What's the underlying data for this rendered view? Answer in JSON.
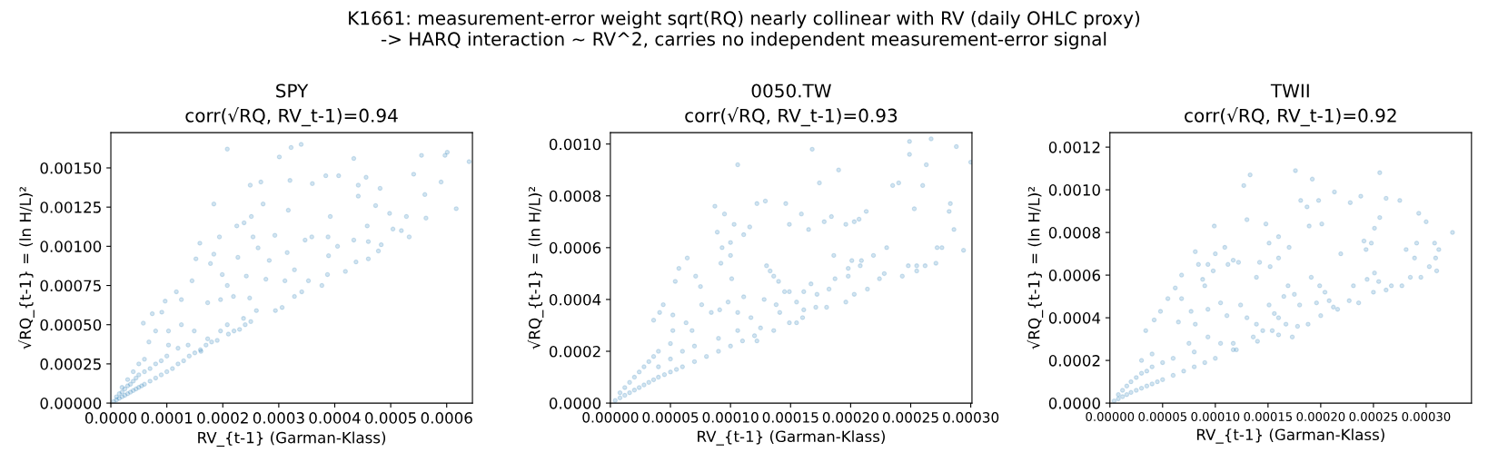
{
  "chart_data": [
    {
      "type": "other",
      "title": "K1661: measurement-error weight sqrt(RQ) nearly collinear with RV (daily OHLC proxy)",
      "subtitle": "-> HARQ interaction ~ RV^2, carries no independent measurement-error signal"
    },
    {
      "type": "scatter",
      "title": "SPY",
      "subtitle": "corr(√RQ, RV_t-1)=0.94",
      "xlabel": "RV_{t-1} (Garman-Klass)",
      "ylabel": "√RQ_{t-1} = (ln H/L)²",
      "marker": "circle",
      "color": "#1f77b4",
      "xlim": [
        0,
        0.000646
      ],
      "ylim": [
        0,
        0.001725
      ],
      "xticks": [
        {
          "value": 0,
          "label": "0.0000"
        },
        {
          "value": 0.0001,
          "label": "0.0001"
        },
        {
          "value": 0.0002,
          "label": "0.0002"
        },
        {
          "value": 0.0003,
          "label": "0.0003"
        },
        {
          "value": 0.0004,
          "label": "0.0004"
        },
        {
          "value": 0.0005,
          "label": "0.0005"
        },
        {
          "value": 0.0006,
          "label": "0.0006"
        }
      ],
      "yticks": [
        {
          "value": 0,
          "label": "0.00000"
        },
        {
          "value": 0.00025,
          "label": "0.00025"
        },
        {
          "value": 0.0005,
          "label": "0.00050"
        },
        {
          "value": 0.00075,
          "label": "0.00075"
        },
        {
          "value": 0.001,
          "label": "0.00100"
        },
        {
          "value": 0.00125,
          "label": "0.00125"
        },
        {
          "value": 0.0015,
          "label": "0.00150"
        }
      ],
      "x": [
        0.000208,
        0.000322,
        0.00034,
        0.000301,
        0.000434,
        0.000555,
        0.000601,
        0.000597,
        0.00064,
        0.000541,
        0.00059,
        0.000561,
        0.000563,
        0.000617,
        0.000528,
        0.000533,
        0.000519,
        0.000504,
        0.000498,
        0.000473,
        0.000481,
        0.000456,
        0.000442,
        0.000442,
        0.000458,
        0.000434,
        0.00046,
        0.000483,
        0.000478,
        0.00046,
        0.000438,
        0.000419,
        0.000405,
        0.000407,
        0.000384,
        0.000392,
        0.00036,
        0.000359,
        0.000388,
        0.000389,
        0.000387,
        0.000377,
        0.000341,
        0.000353,
        0.00032,
        0.000317,
        0.000347,
        0.000315,
        0.000328,
        0.000311,
        0.000328,
        0.000306,
        0.000294,
        0.000293,
        0.000268,
        0.000249,
        0.000272,
        0.000251,
        0.000238,
        0.000225,
        0.000254,
        0.000263,
        0.000283,
        0.000227,
        0.000184,
        0.000194,
        0.000159,
        0.000152,
        0.000184,
        0.000199,
        0.000145,
        0.000178,
        0.000208,
        0.000242,
        0.000277,
        0.000117,
        9.7e-05,
        5.8e-05,
        7.4e-05,
        9.1e-05,
        0.000126,
        0.000173,
        0.000196,
        0.000219,
        0.000248,
        0.00026,
        0.000237,
        0.000208,
        0.000196,
        0.000173,
        0.000149,
        0.000126,
        0.000103,
        8e-05,
        6.8e-05,
        0.000103,
        0.000138,
        0.000161,
        0.00022,
        0.00024,
        5e-06,
        1e-05,
        1e-05,
        1.5e-05,
        1.5e-05,
        2e-05,
        2e-05,
        2e-05,
        2.5e-05,
        2.5e-05,
        3e-05,
        3e-05,
        3e-05,
        3.5e-05,
        3.5e-05,
        4e-05,
        4e-05,
        4e-05,
        4.5e-05,
        4.5e-05,
        5e-05,
        5e-05,
        5e-05,
        5.5e-05,
        6e-05,
        6e-05,
        6e-05,
        7e-05,
        7e-05,
        8e-05,
        8e-05,
        9e-05,
        9e-05,
        0.0001,
        0.0001,
        0.00011,
        0.00012,
        0.00012,
        0.00013,
        0.00014,
        0.00015,
        0.00016,
        0.00017,
        0.00018,
        0.00019,
        0.00021,
        0.00023,
        0.00025
      ],
      "values": [
        0.00162,
        0.00163,
        0.00165,
        0.00157,
        0.00156,
        0.00158,
        0.0016,
        0.00158,
        0.00154,
        0.00146,
        0.00141,
        0.00133,
        0.00118,
        0.00124,
        0.00119,
        0.00106,
        0.0011,
        0.00111,
        0.00121,
        0.00126,
        0.00137,
        0.00144,
        0.00139,
        0.00132,
        0.00113,
        0.00104,
        0.00103,
        0.00101,
        0.00097,
        0.00092,
        0.0009,
        0.00084,
        0.001,
        0.00145,
        0.00145,
        0.00119,
        0.0014,
        0.00106,
        0.00106,
        0.00094,
        0.00082,
        0.00075,
        0.00071,
        0.00078,
        0.00142,
        0.00123,
        0.00104,
        0.00096,
        0.00085,
        0.00078,
        0.00068,
        0.00061,
        0.00059,
        0.00107,
        0.00141,
        0.00139,
        0.00127,
        0.00119,
        0.00115,
        0.00113,
        0.00106,
        0.00099,
        0.00091,
        0.00093,
        0.00127,
        0.00106,
        0.00102,
        0.00092,
        0.00095,
        0.00082,
        0.00078,
        0.00089,
        0.00075,
        0.00081,
        0.00079,
        0.00071,
        0.00065,
        0.00051,
        0.00057,
        0.00058,
        0.00066,
        0.00064,
        0.00066,
        0.00068,
        0.00067,
        0.00059,
        0.00054,
        0.0005,
        0.00046,
        0.00041,
        0.00046,
        0.0005,
        0.00046,
        0.00046,
        0.00039,
        0.00037,
        0.00037,
        0.00033,
        0.00046,
        0.0005,
        1e-05,
        2e-05,
        4e-05,
        3e-05,
        6e-05,
        4e-05,
        7e-05,
        0.0001,
        5e-05,
        9e-05,
        6e-05,
        0.00011,
        0.00015,
        7e-05,
        0.00012,
        8e-05,
        0.00014,
        0.0002,
        9e-05,
        0.00016,
        0.0001,
        0.00018,
        0.00025,
        0.00011,
        0.00012,
        0.0002,
        0.00028,
        0.00014,
        0.00022,
        0.00016,
        0.00025,
        0.00018,
        0.00027,
        0.0002,
        0.0003,
        0.00022,
        0.00025,
        0.00035,
        0.00027,
        0.0003,
        0.00032,
        0.00034,
        0.00037,
        0.00039,
        0.0004,
        0.00044,
        0.00047,
        0.00052
      ]
    },
    {
      "type": "scatter",
      "title": "0050.TW",
      "subtitle": "corr(√RQ, RV_t-1)=0.93",
      "xlabel": "RV_{t-1} (Garman-Klass)",
      "ylabel": "√RQ_{t-1} = (ln H/L)²",
      "marker": "circle",
      "color": "#1f77b4",
      "xlim": [
        0,
        0.000301
      ],
      "ylim": [
        0,
        0.001044
      ],
      "xticks": [
        {
          "value": 0,
          "label": "0.00000"
        },
        {
          "value": 5e-05,
          "label": "0.00005"
        },
        {
          "value": 0.0001,
          "label": "0.00010"
        },
        {
          "value": 0.00015,
          "label": "0.00015"
        },
        {
          "value": 0.0002,
          "label": "0.00020"
        },
        {
          "value": 0.00025,
          "label": "0.00025"
        },
        {
          "value": 0.0003,
          "label": "0.00030"
        }
      ],
      "yticks": [
        {
          "value": 0,
          "label": "0.0000"
        },
        {
          "value": 0.0002,
          "label": "0.0002"
        },
        {
          "value": 0.0004,
          "label": "0.0004"
        },
        {
          "value": 0.0006,
          "label": "0.0006"
        },
        {
          "value": 0.0008,
          "label": "0.0008"
        },
        {
          "value": 0.001,
          "label": "0.0010"
        }
      ],
      "x": [
        0.000106,
        0.000168,
        0.00019,
        0.000174,
        0.000249,
        0.000267,
        0.000249,
        0.000288,
        0.000263,
        0.0003,
        0.000235,
        0.00024,
        0.00026,
        0.000283,
        0.000282,
        0.000286,
        0.000294,
        0.000272,
        0.000276,
        0.000271,
        0.000253,
        0.000255,
        0.000262,
        0.000248,
        0.000243,
        0.000255,
        0.000213,
        0.000207,
        0.000203,
        0.000196,
        0.000184,
        0.000178,
        0.000159,
        0.000165,
        0.000149,
        0.000146,
        0.000129,
        0.000122,
        0.000116,
        0.000111,
        0.000103,
        9.5e-05,
        8.7e-05,
        8.9e-05,
        0.0001,
        9.3e-05,
        0.0001,
        9.2e-05,
        0.000101,
        0.00023,
        0.000219,
        0.000209,
        0.000201,
        0.000198,
        0.000198,
        0.000208,
        0.000228,
        0.000224,
        0.000214,
        0.000203,
        0.000196,
        0.000186,
        0.000187,
        0.000182,
        0.000172,
        0.000167,
        0.000161,
        0.000171,
        0.000161,
        0.000155,
        0.000149,
        0.000155,
        0.000149,
        0.000145,
        0.00014,
        0.000136,
        0.000133,
        0.00013,
        0.000138,
        0.000141,
        0.000128,
        0.000136,
        0.000125,
        0.000117,
        0.000111,
        0.000106,
        9.8e-05,
        9.1e-05,
        8.4e-05,
        7.6e-05,
        7.5e-05,
        7.1e-05,
        6.4e-05,
        5.7e-05,
        5.4e-05,
        4.4e-05,
        4.1e-05,
        3.6e-05,
        5.2e-05,
        6.3e-05,
        6.8e-05,
        5.2e-05,
        9e-05,
        0.000106,
        0.000122,
        4e-06,
        8e-06,
        8e-06,
        1.2e-05,
        1.2e-05,
        1.6e-05,
        1.6e-05,
        2e-05,
        2e-05,
        2.4e-05,
        2.4e-05,
        2.8e-05,
        2.8e-05,
        3.2e-05,
        3.2e-05,
        3.6e-05,
        3.6e-05,
        4e-05,
        4e-05,
        4e-05,
        4.5e-05,
        5e-05,
        5e-05,
        5e-05,
        5.5e-05,
        6e-05,
        6e-05,
        7e-05,
        7e-05,
        8e-05,
        9e-05,
        0.0001,
        0.00011,
        0.00012,
        0.00016,
        0.00018
      ],
      "values": [
        0.00092,
        0.00098,
        0.0009,
        0.00085,
        0.00101,
        0.00102,
        0.00096,
        0.00099,
        0.00092,
        0.00093,
        0.00084,
        0.00085,
        0.00084,
        0.00077,
        0.00074,
        0.00067,
        0.00059,
        0.0006,
        0.0006,
        0.00054,
        0.00075,
        0.00053,
        0.00053,
        0.00053,
        0.00049,
        0.00051,
        0.00074,
        0.00071,
        0.0007,
        0.00069,
        0.00072,
        0.0007,
        0.00073,
        0.00067,
        0.00069,
        0.00077,
        0.00078,
        0.00077,
        0.00068,
        0.00065,
        0.00069,
        0.00073,
        0.00076,
        0.00066,
        0.00062,
        0.0006,
        0.00057,
        0.00054,
        0.00048,
        0.0006,
        0.00057,
        0.00055,
        0.00055,
        0.00052,
        0.00049,
        0.00053,
        0.0005,
        0.00048,
        0.00044,
        0.00042,
        0.00039,
        0.00057,
        0.00048,
        0.00044,
        0.00042,
        0.00046,
        0.00043,
        0.00037,
        0.00036,
        0.00039,
        0.00031,
        0.00031,
        0.00043,
        0.00043,
        0.00047,
        0.00049,
        0.00051,
        0.00053,
        0.00038,
        0.00035,
        0.0004,
        0.00028,
        0.00029,
        0.00033,
        0.00041,
        0.00035,
        0.00039,
        0.00036,
        0.00035,
        0.00038,
        0.00045,
        0.00049,
        0.00056,
        0.00052,
        0.00047,
        0.00038,
        0.00035,
        0.00032,
        0.00034,
        0.00031,
        0.00028,
        0.00028,
        0.00025,
        0.00028,
        0.00024,
        1e-05,
        2e-05,
        4e-05,
        3e-05,
        6e-05,
        4e-05,
        8e-05,
        5e-05,
        0.0001,
        6e-05,
        0.00012,
        7e-05,
        0.00014,
        8e-05,
        0.00016,
        9e-05,
        0.00018,
        0.0001,
        0.00014,
        0.0002,
        0.00011,
        0.00012,
        0.00017,
        0.00023,
        0.00013,
        0.00014,
        0.0002,
        0.00016,
        0.00022,
        0.00018,
        0.0002,
        0.00022,
        0.00024,
        0.00026,
        0.00033,
        0.00037
      ]
    },
    {
      "type": "scatter",
      "title": "TWII",
      "subtitle": "corr(√RQ, RV_t-1)=0.92",
      "xlabel": "RV_{t-1} (Garman-Klass)",
      "ylabel": "√RQ_{t-1} = (ln H/L)²",
      "marker": "circle",
      "color": "#1f77b4",
      "xlim": [
        0,
        0.000343
      ],
      "ylim": [
        0,
        0.001268
      ],
      "xticks": [
        {
          "value": 0,
          "label": "0.00000"
        },
        {
          "value": 5e-05,
          "label": "0.00005"
        },
        {
          "value": 0.0001,
          "label": "0.00010"
        },
        {
          "value": 0.00015,
          "label": "0.00015"
        },
        {
          "value": 0.0002,
          "label": "0.00020"
        },
        {
          "value": 0.00025,
          "label": "0.00025"
        },
        {
          "value": 0.0003,
          "label": "0.00030"
        }
      ],
      "yticks": [
        {
          "value": 0,
          "label": "0.0000"
        },
        {
          "value": 0.0002,
          "label": "0.0002"
        },
        {
          "value": 0.0004,
          "label": "0.0004"
        },
        {
          "value": 0.0006,
          "label": "0.0006"
        },
        {
          "value": 0.0008,
          "label": "0.0008"
        },
        {
          "value": 0.001,
          "label": "0.0010"
        },
        {
          "value": 0.0012,
          "label": "0.0012"
        }
      ],
      "x": [
        0.000176,
        0.000256,
        0.000133,
        0.000127,
        0.000192,
        0.000213,
        0.000238,
        0.000228,
        0.000262,
        0.000275,
        0.000181,
        0.000198,
        0.000187,
        0.000189,
        0.000201,
        0.000256,
        0.000251,
        0.000293,
        0.0003,
        0.000325,
        0.000308,
        0.000312,
        0.000309,
        0.00031,
        0.000303,
        0.000289,
        0.000291,
        0.000281,
        0.000295,
        0.000285,
        0.000277,
        0.000267,
        0.000262,
        0.000255,
        0.000251,
        0.000248,
        0.000241,
        0.000243,
        0.00025,
        0.000244,
        0.000231,
        0.000236,
        0.000227,
        0.000219,
        0.000216,
        0.000212,
        0.000208,
        0.000204,
        0.000199,
        0.000196,
        0.0002,
        0.000191,
        0.000188,
        0.000178,
        0.00018,
        0.000175,
        0.000169,
        0.000165,
        0.00016,
        0.000156,
        0.000151,
        0.000148,
        0.000151,
        0.00016,
        0.00017,
        0.00016,
        0.000152,
        0.000142,
        0.000139,
        0.00013,
        0.000122,
        0.000117,
        0.000109,
        9.9e-05,
        8.1e-05,
        9.8e-05,
        0.0001,
        0.000112,
        9.3e-05,
        8.8e-05,
        8.4e-05,
        9e-05,
        6.8e-05,
        6.2e-05,
        5.5e-05,
        4.8e-05,
        4.2e-05,
        3.4e-05,
        6.8e-05,
        7.7e-05,
        6.5e-05,
        8.1e-05,
        9.3e-05,
        0.000105,
        0.000111,
        0.000124,
        0.00013,
        0.000139,
        0.000145,
        0.000154,
        0.000167,
        0.000173,
        0.000136,
        0.000117,
        0.000105,
        9.3e-05,
        7.5e-05,
        0.000117,
        4e-06,
        8e-06,
        8e-06,
        1.2e-05,
        1.2e-05,
        1.6e-05,
        1.6e-05,
        2e-05,
        2e-05,
        2.5e-05,
        2.5e-05,
        3e-05,
        3e-05,
        3e-05,
        3.5e-05,
        3.5e-05,
        4e-05,
        4e-05,
        4e-05,
        4.5e-05,
        5e-05,
        5e-05,
        6e-05,
        6e-05,
        7e-05,
        8e-05,
        8e-05,
        9e-05,
        0.0001,
        0.00012,
        0.00014,
        0.00016
      ],
      "values": [
        0.00109,
        0.00108,
        0.00107,
        0.00102,
        0.00105,
        0.00099,
        0.00097,
        0.00094,
        0.00096,
        0.00095,
        0.00095,
        0.00095,
        0.00092,
        0.00083,
        0.00084,
        0.00087,
        0.00082,
        0.00089,
        0.00085,
        0.0008,
        0.00075,
        0.00072,
        0.00068,
        0.00062,
        0.00064,
        0.00068,
        0.00075,
        0.00072,
        0.00059,
        0.00059,
        0.00055,
        0.00055,
        0.00053,
        0.00057,
        0.00061,
        0.00075,
        0.00076,
        0.00072,
        0.00052,
        0.00058,
        0.00055,
        0.00047,
        0.00048,
        0.0007,
        0.00044,
        0.00045,
        0.00048,
        0.00052,
        0.00055,
        0.00047,
        0.00041,
        0.00059,
        0.00037,
        0.00036,
        0.00046,
        0.00051,
        0.00055,
        0.0005,
        0.0004,
        0.00042,
        0.00046,
        0.00084,
        0.00075,
        0.00078,
        0.00073,
        0.00068,
        0.00064,
        0.00066,
        0.00059,
        0.00086,
        0.00066,
        0.00067,
        0.00073,
        0.00083,
        0.00071,
        0.00062,
        0.0007,
        0.00065,
        0.00065,
        0.00058,
        0.00065,
        0.00055,
        0.0006,
        0.00054,
        0.00049,
        0.00043,
        0.00039,
        0.00034,
        0.00049,
        0.00043,
        0.00038,
        0.00037,
        0.00044,
        0.00047,
        0.00041,
        0.00046,
        0.0004,
        0.00037,
        0.00034,
        0.00034,
        0.00037,
        0.00031,
        0.00031,
        0.00028,
        0.00028,
        0.00031,
        0.00028,
        0.00025,
        1e-05,
        2e-05,
        4e-05,
        3e-05,
        6e-05,
        4e-05,
        8e-05,
        5e-05,
        0.0001,
        6e-05,
        0.00012,
        7e-05,
        0.00014,
        0.0002,
        8e-05,
        0.00015,
        9e-05,
        0.00017,
        0.00023,
        0.0001,
        0.00011,
        0.00019,
        0.00013,
        0.00021,
        0.00015,
        0.00017,
        0.00024,
        0.00019,
        0.00021,
        0.00025,
        0.00029,
        0.00032
      ]
    }
  ]
}
